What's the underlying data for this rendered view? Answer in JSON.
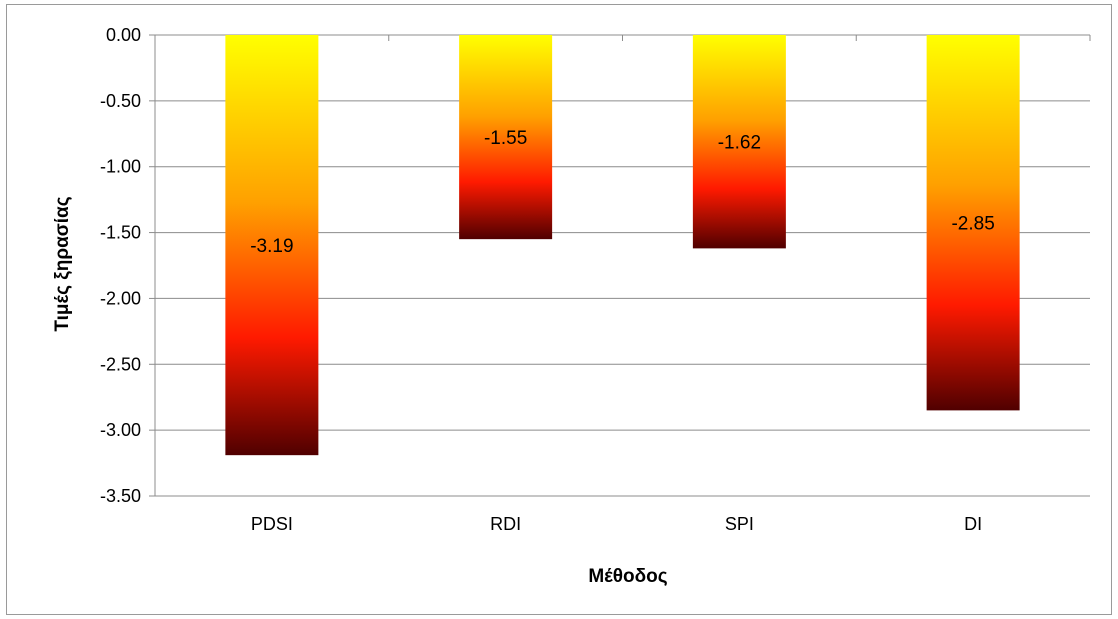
{
  "chart_data": {
    "type": "bar",
    "categories": [
      "PDSI",
      "RDI",
      "SPI",
      "DI"
    ],
    "values": [
      -3.19,
      -1.55,
      -1.62,
      -2.85
    ],
    "data_labels": [
      "-3.19",
      "-1.55",
      "-1.62",
      "-2.85"
    ],
    "title": "",
    "xlabel": "Μέθοδος",
    "ylabel": "Τιμές ξηρασίας",
    "ylim": [
      -3.5,
      0
    ],
    "yticks": [
      0,
      -0.5,
      -1,
      -1.5,
      -2,
      -2.5,
      -3,
      -3.5
    ],
    "ytick_labels": [
      "0.00",
      "-0.50",
      "-1.00",
      "-1.50",
      "-2.00",
      "-2.50",
      "-3.00",
      "-3.50"
    ],
    "grid": true,
    "legend": "none",
    "gradient_colors": [
      "#ffff00",
      "#ffa000",
      "#ff1a00",
      "#500000"
    ],
    "gridline_color": "#8c8c8c"
  }
}
